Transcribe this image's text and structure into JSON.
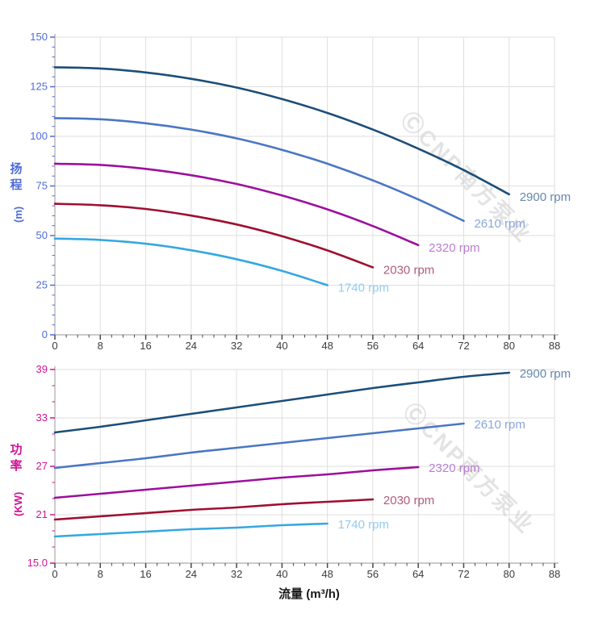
{
  "watermark": {
    "text": "ⒸCNP南方泵业"
  },
  "theme": {
    "background": "#ffffff",
    "grid_color": "#dedede",
    "spine_color": "#ababab",
    "x_tick_color": "#474747",
    "x_label_color": "#3c3c3c",
    "x_title_color": "#1a1a1a",
    "watermark_color": "#cccccc",
    "head_axis_color": "#4f6bd8",
    "power_axis_color": "#d01493"
  },
  "chart_data": [
    {
      "type": "line",
      "id": "head",
      "ylabel": "扬程 (m)",
      "ylabel_lines": [
        "扬",
        "程"
      ],
      "ylabel_unit": "(m)",
      "axis_color": "#4f6bd8",
      "xlabel": "",
      "xlim": [
        0,
        88
      ],
      "ylim": [
        0,
        150
      ],
      "x_major": 8,
      "x_minor": 2,
      "y_major": 25,
      "y_minor": 5,
      "grid": true,
      "x_ticks": [
        "0",
        "8",
        "16",
        "24",
        "32",
        "40",
        "48",
        "56",
        "64",
        "72",
        "80",
        "88"
      ],
      "y_ticks": [
        "0",
        "25",
        "50",
        "75",
        "100",
        "125",
        "150"
      ],
      "series": [
        {
          "name": "2900 rpm",
          "color": "#1c4e79",
          "label_color": "#6588ad",
          "x": [
            0,
            8,
            16,
            24,
            32,
            40,
            48,
            56,
            64,
            72,
            80
          ],
          "y": [
            134.8,
            134.2,
            132.2,
            129.0,
            124.6,
            118.8,
            111.8,
            103.4,
            93.8,
            83.0,
            70.8
          ]
        },
        {
          "name": "2610 rpm",
          "color": "#4a76c4",
          "label_color": "#89a6db",
          "x": [
            0,
            8,
            16,
            24,
            32,
            40,
            48,
            56,
            64,
            72
          ],
          "y": [
            109.2,
            108.6,
            106.6,
            103.4,
            99.0,
            93.2,
            86.2,
            77.8,
            68.2,
            57.4
          ]
        },
        {
          "name": "2320 rpm",
          "color": "#9c0f9c",
          "label_color": "#b77fd0",
          "x": [
            0,
            8,
            16,
            24,
            32,
            40,
            48,
            56,
            64
          ],
          "y": [
            86.2,
            85.6,
            83.6,
            80.4,
            76.0,
            70.2,
            63.2,
            54.8,
            45.2
          ]
        },
        {
          "name": "2030 rpm",
          "color": "#9e1030",
          "label_color": "#b15c77",
          "x": [
            0,
            8,
            16,
            24,
            32,
            40,
            48,
            56
          ],
          "y": [
            66.0,
            65.3,
            63.4,
            60.1,
            55.6,
            49.7,
            42.5,
            34.0
          ]
        },
        {
          "name": "1740 rpm",
          "color": "#36a7e0",
          "label_color": "#90cdf0",
          "x": [
            0,
            8,
            16,
            24,
            32,
            40,
            48
          ],
          "y": [
            48.5,
            47.8,
            45.9,
            42.6,
            38.1,
            32.2,
            25.0
          ]
        }
      ]
    },
    {
      "type": "line",
      "id": "power",
      "ylabel": "功率 (KW)",
      "ylabel_lines": [
        "功",
        "率"
      ],
      "ylabel_unit": "(KW)",
      "axis_color": "#d01493",
      "xlabel": "流量 (m³/h)",
      "xlim": [
        0,
        88
      ],
      "ylim": [
        15,
        39
      ],
      "x_major": 8,
      "x_minor": 2,
      "y_major": 6,
      "y_minor": 2,
      "grid": true,
      "x_ticks": [
        "0",
        "8",
        "16",
        "24",
        "32",
        "40",
        "48",
        "56",
        "64",
        "72",
        "80",
        "88"
      ],
      "y_ticks": [
        "15.0",
        "21",
        "27",
        "33",
        "39"
      ],
      "series": [
        {
          "name": "2900 rpm",
          "color": "#1c4e79",
          "label_color": "#6588ad",
          "x": [
            0,
            8,
            16,
            24,
            32,
            40,
            48,
            56,
            64,
            72,
            80
          ],
          "y": [
            31.2,
            31.9,
            32.7,
            33.5,
            34.3,
            35.1,
            35.9,
            36.7,
            37.4,
            38.1,
            38.6
          ]
        },
        {
          "name": "2610 rpm",
          "color": "#4a76c4",
          "label_color": "#89a6db",
          "x": [
            0,
            8,
            16,
            24,
            32,
            40,
            48,
            56,
            64,
            72
          ],
          "y": [
            26.8,
            27.4,
            28.0,
            28.7,
            29.3,
            29.9,
            30.5,
            31.1,
            31.7,
            32.3
          ]
        },
        {
          "name": "2320 rpm",
          "color": "#9c0f9c",
          "label_color": "#b77fd0",
          "x": [
            0,
            8,
            16,
            24,
            32,
            40,
            48,
            56,
            64
          ],
          "y": [
            23.1,
            23.6,
            24.1,
            24.6,
            25.1,
            25.6,
            26.0,
            26.5,
            26.9
          ]
        },
        {
          "name": "2030 rpm",
          "color": "#9e1030",
          "label_color": "#b15c77",
          "x": [
            0,
            8,
            16,
            24,
            32,
            40,
            48,
            56
          ],
          "y": [
            20.4,
            20.8,
            21.2,
            21.6,
            21.9,
            22.3,
            22.6,
            22.9
          ]
        },
        {
          "name": "1740 rpm",
          "color": "#36a7e0",
          "label_color": "#90cdf0",
          "x": [
            0,
            8,
            16,
            24,
            32,
            40,
            48
          ],
          "y": [
            18.3,
            18.6,
            18.9,
            19.2,
            19.4,
            19.7,
            19.9
          ]
        }
      ]
    }
  ]
}
